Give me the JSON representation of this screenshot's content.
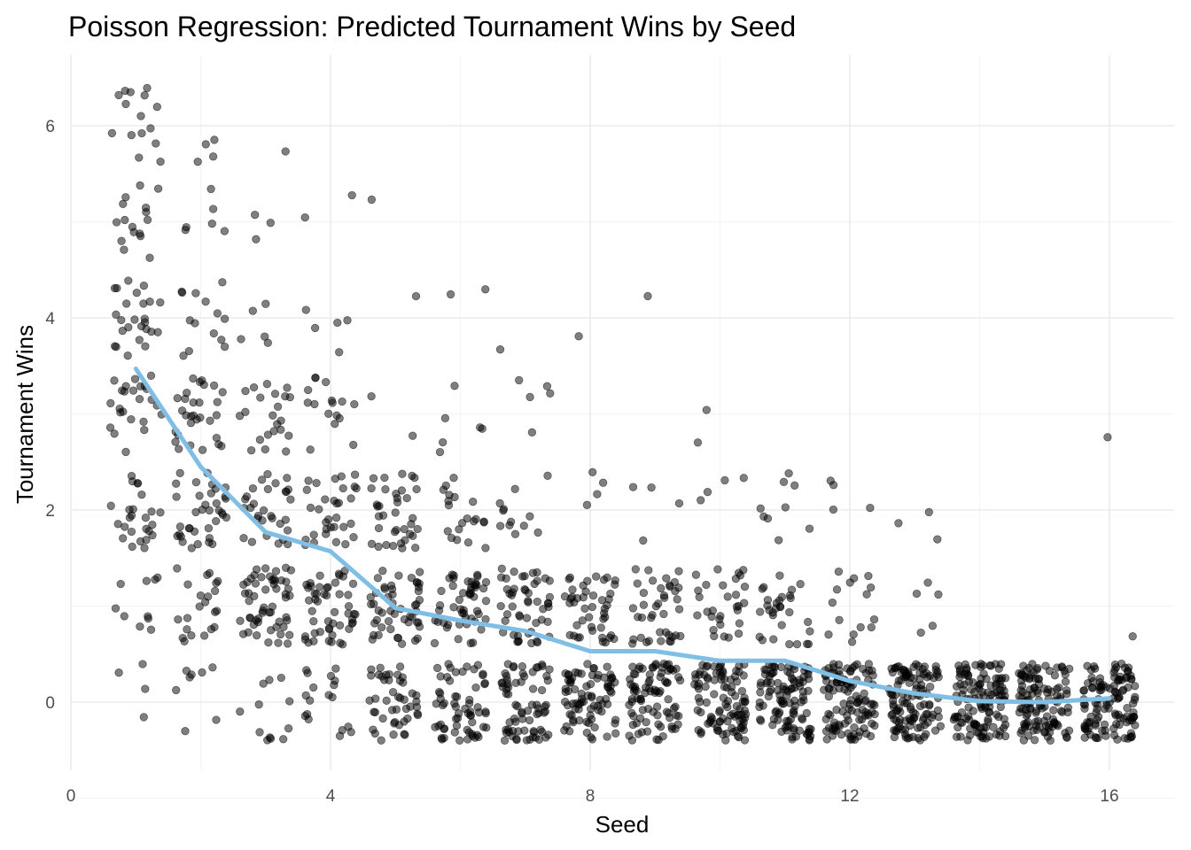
{
  "chart_data": {
    "type": "scatter",
    "title": "Poisson Regression: Predicted Tournament Wins by Seed",
    "xlabel": "Seed",
    "ylabel": "Tournament Wins",
    "xlim": [
      0,
      16.7
    ],
    "ylim": [
      -0.65,
      6.65
    ],
    "x_ticks": [
      0,
      4,
      8,
      12,
      16
    ],
    "y_ticks": [
      0,
      2,
      4,
      6
    ],
    "grid": true,
    "legend": "none",
    "point_color": "#000000",
    "jitter": {
      "width": 0.4,
      "height": 0.4
    },
    "seeds": [
      1,
      2,
      3,
      4,
      5,
      6,
      7,
      8,
      9,
      10,
      11,
      12,
      13,
      14,
      15,
      16
    ],
    "observed_win_counts": [
      {
        "seed": 1,
        "counts": [
          4,
          10,
          25,
          24,
          25,
          16,
          15
        ]
      },
      {
        "seed": 2,
        "counts": [
          8,
          22,
          36,
          30,
          14,
          6,
          4
        ]
      },
      {
        "seed": 3,
        "counts": [
          12,
          55,
          30,
          22,
          5,
          3,
          1
        ]
      },
      {
        "seed": 4,
        "counts": [
          18,
          50,
          32,
          16,
          5,
          2,
          0
        ]
      },
      {
        "seed": 5,
        "counts": [
          45,
          50,
          36,
          2,
          1,
          1,
          0
        ]
      },
      {
        "seed": 6,
        "counts": [
          62,
          50,
          20,
          6,
          2,
          0,
          0
        ]
      },
      {
        "seed": 7,
        "counts": [
          70,
          50,
          12,
          5,
          1,
          0,
          0
        ]
      },
      {
        "seed": 8,
        "counts": [
          80,
          45,
          4,
          0,
          1,
          0,
          0
        ]
      },
      {
        "seed": 9,
        "counts": [
          85,
          40,
          4,
          0,
          1,
          0,
          0
        ]
      },
      {
        "seed": 10,
        "counts": [
          100,
          30,
          4,
          2,
          0,
          0,
          0
        ]
      },
      {
        "seed": 11,
        "counts": [
          105,
          30,
          9,
          0,
          0,
          0,
          0
        ]
      },
      {
        "seed": 12,
        "counts": [
          110,
          15,
          4,
          0,
          0,
          0,
          0
        ]
      },
      {
        "seed": 13,
        "counts": [
          120,
          5,
          3,
          0,
          0,
          0,
          0
        ]
      },
      {
        "seed": 14,
        "counts": [
          125,
          0,
          0,
          0,
          0,
          0,
          0
        ]
      },
      {
        "seed": 15,
        "counts": [
          120,
          0,
          0,
          0,
          0,
          0,
          0
        ]
      },
      {
        "seed": 16,
        "counts": [
          120,
          1,
          0,
          1,
          0,
          0,
          0
        ]
      }
    ],
    "series": [
      {
        "type": "line",
        "color": "#7fbfe6",
        "x": [
          1,
          2,
          3,
          4,
          5,
          6,
          7,
          8,
          9,
          10,
          11,
          12,
          13,
          14,
          15,
          16
        ],
        "y": [
          3.47,
          2.45,
          1.77,
          1.57,
          0.98,
          0.85,
          0.74,
          0.53,
          0.53,
          0.43,
          0.43,
          0.22,
          0.09,
          0.01,
          0.0,
          0.04
        ]
      }
    ]
  }
}
